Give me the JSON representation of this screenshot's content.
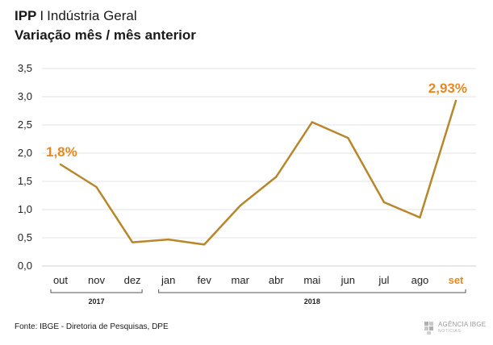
{
  "header": {
    "title_bold": "IPP",
    "title_separator": "I",
    "title_rest": "Indústria Geral",
    "subtitle": "Variação mês / mês anterior"
  },
  "footer": {
    "source": "Fonte: IBGE - Diretoria de Pesquisas, DPE",
    "brand_top": "AGÊNCIA IBGE",
    "brand_sub": "NOTÍCIAS"
  },
  "colors": {
    "line": "#b8862b",
    "highlight": "#e8881e",
    "grid": "#e3e3e3",
    "axis": "#555555"
  },
  "chart_data": {
    "type": "line",
    "title": "Variação mês / mês anterior",
    "categories": [
      "out",
      "nov",
      "dez",
      "jan",
      "fev",
      "mar",
      "abr",
      "mai",
      "jun",
      "jul",
      "ago",
      "set"
    ],
    "values": [
      1.8,
      1.4,
      0.42,
      0.47,
      0.38,
      1.07,
      1.58,
      2.55,
      2.27,
      1.13,
      0.86,
      2.93
    ],
    "yticks": [
      "0,0",
      "0,5",
      "1,0",
      "1,5",
      "2,0",
      "2,5",
      "3,0",
      "3,5"
    ],
    "ylim": [
      0,
      3.5
    ],
    "grid": true,
    "year_groups": [
      {
        "label": "2017",
        "from": 0,
        "to": 2
      },
      {
        "label": "2018",
        "from": 3,
        "to": 11
      }
    ],
    "annotations": [
      {
        "index": 0,
        "text": "1,8%"
      },
      {
        "index": 11,
        "text": "2,93%"
      }
    ],
    "highlight_category_index": 11
  }
}
